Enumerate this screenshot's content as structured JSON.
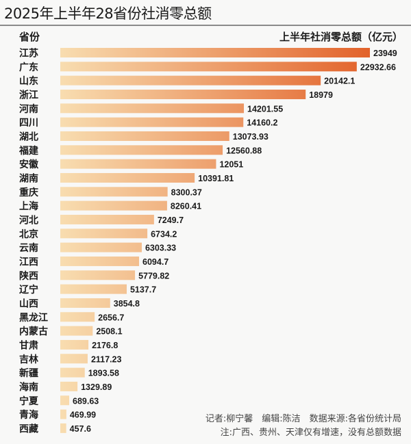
{
  "title": "2025年上半年28省份社消零总额",
  "header": {
    "category_label": "省份",
    "value_label": "上半年社消零总额（亿元）"
  },
  "footer": {
    "credits": "记者:柳宁馨　编辑:陈洁　数据来源:各省份统计局",
    "note": "注:广西、贵州、天津仅有增速，没有总额数据"
  },
  "colors": {
    "bar_start": "#f8ddb0",
    "bar_end": "#e2622a"
  },
  "chart_data": {
    "type": "bar",
    "orientation": "horizontal",
    "title": "2025年上半年28省份社消零总额",
    "xlabel": "上半年社消零总额（亿元）",
    "ylabel": "省份",
    "grid": false,
    "categories": [
      "江苏",
      "广东",
      "山东",
      "浙江",
      "河南",
      "四川",
      "湖北",
      "福建",
      "安徽",
      "湖南",
      "重庆",
      "上海",
      "河北",
      "北京",
      "云南",
      "江西",
      "陕西",
      "辽宁",
      "山西",
      "黑龙江",
      "内蒙古",
      "甘肃",
      "吉林",
      "新疆",
      "海南",
      "宁夏",
      "青海",
      "西藏"
    ],
    "values": [
      23949,
      22932.66,
      20142.1,
      18979,
      14201.55,
      14160.2,
      13073.93,
      12560.88,
      12051,
      10391.81,
      8300.37,
      8260.41,
      7249.7,
      6734.2,
      6303.33,
      6094.7,
      5779.82,
      5137.7,
      3854.8,
      2656.7,
      2508.1,
      2176.8,
      2117.23,
      1893.58,
      1329.89,
      689.63,
      469.99,
      457.6
    ],
    "value_labels": [
      "23949",
      "22932.66",
      "20142.1",
      "18979",
      "14201.55",
      "14160.2",
      "13073.93",
      "12560.88",
      "12051",
      "10391.81",
      "8300.37",
      "8260.41",
      "7249.7",
      "6734.2",
      "6303.33",
      "6094.7",
      "5779.82",
      "5137.7",
      "3854.8",
      "2656.7",
      "2508.1",
      "2176.8",
      "2117.23",
      "1893.58",
      "1329.89",
      "689.63",
      "469.99",
      "457.6"
    ]
  }
}
